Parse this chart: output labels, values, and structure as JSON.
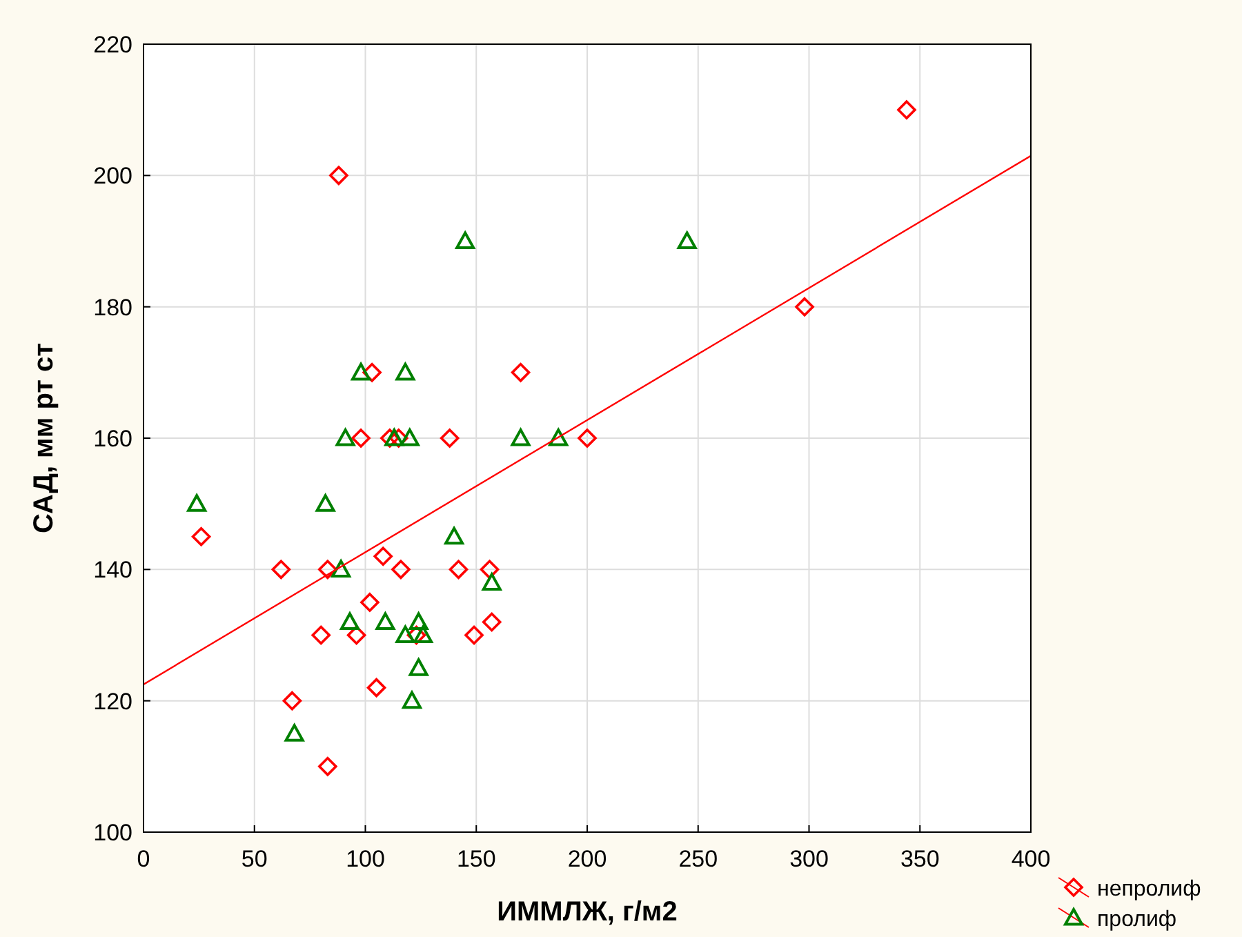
{
  "chart_data": {
    "type": "scatter",
    "xlabel": "ИММЛЖ, г/м2",
    "ylabel": "САД, мм рт ст",
    "xlim": [
      0,
      400
    ],
    "ylim": [
      100,
      220
    ],
    "xticks": [
      0,
      50,
      100,
      150,
      200,
      250,
      300,
      350,
      400
    ],
    "yticks": [
      100,
      120,
      140,
      160,
      180,
      200,
      220
    ],
    "grid": true,
    "legend": "bottom right",
    "series": [
      {
        "name": "непролиф",
        "color": "#ff0000",
        "marker": "diamond",
        "x": [
          26,
          88,
          62,
          67,
          80,
          83,
          83,
          98,
          103,
          102,
          105,
          108,
          96,
          116,
          111,
          115,
          123,
          138,
          142,
          149,
          156,
          157,
          170,
          200,
          298,
          344
        ],
        "values": [
          145,
          200,
          140,
          120,
          130,
          110,
          140,
          160,
          170,
          135,
          122,
          142,
          130,
          140,
          160,
          160,
          130,
          160,
          140,
          130,
          140,
          132,
          170,
          160,
          180,
          210
        ]
      },
      {
        "name": "пролиф",
        "color": "#008000",
        "marker": "triangle",
        "x": [
          24,
          68,
          82,
          89,
          91,
          93,
          98,
          109,
          113,
          118,
          120,
          118,
          124,
          126,
          124,
          121,
          140,
          145,
          157,
          170,
          187,
          245
        ],
        "values": [
          150,
          115,
          150,
          140,
          160,
          132,
          170,
          132,
          160,
          170,
          160,
          130,
          132,
          130,
          125,
          120,
          145,
          190,
          138,
          160,
          160,
          190
        ]
      },
      {
        "type": "line",
        "color": "#ff0000",
        "x": [
          0,
          400
        ],
        "values": [
          122.5,
          203
        ]
      }
    ]
  }
}
